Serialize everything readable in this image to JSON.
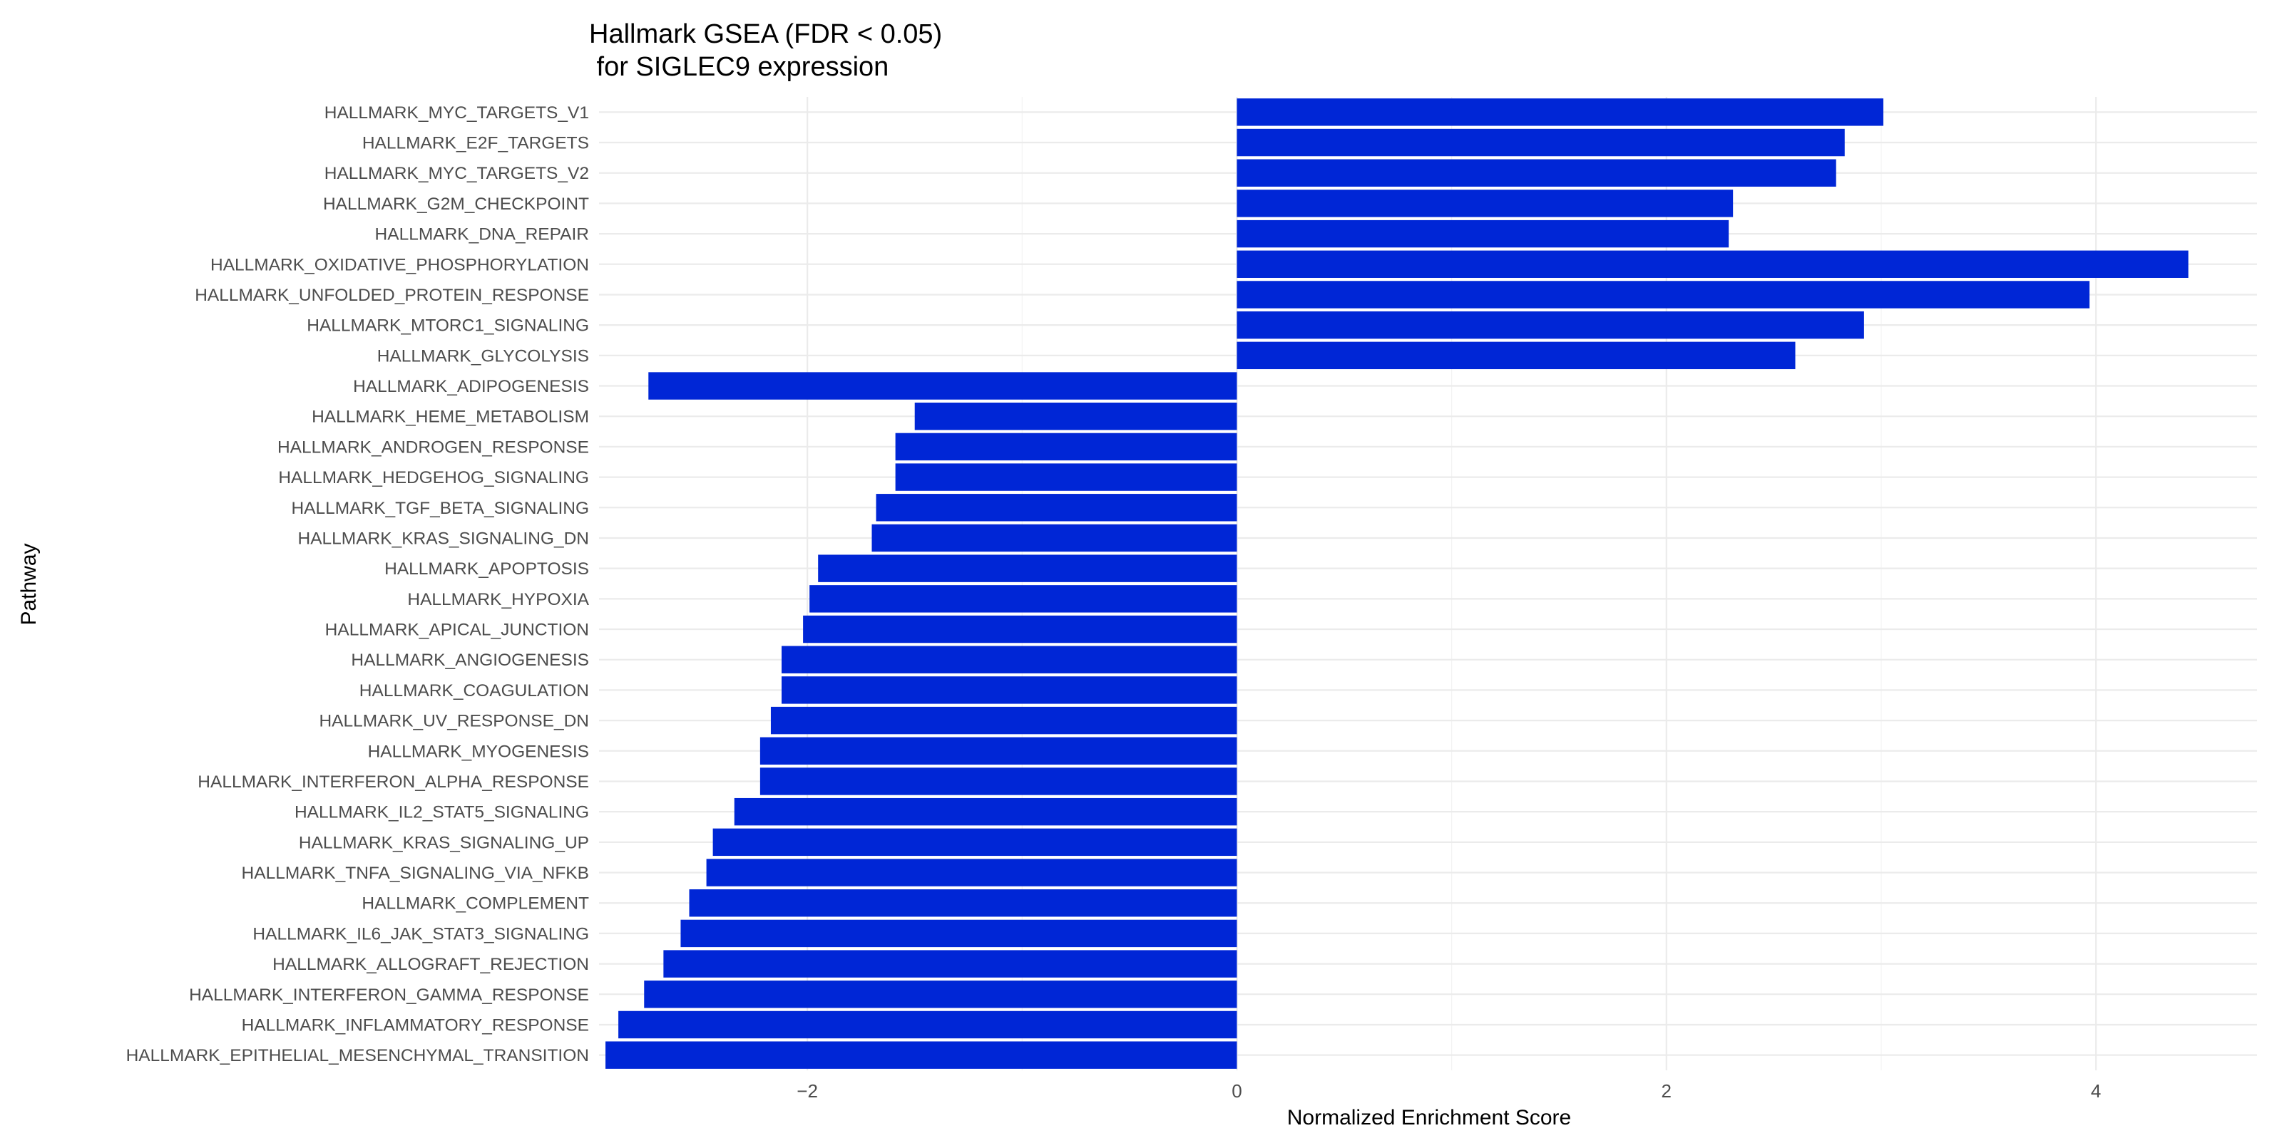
{
  "chart_data": {
    "type": "bar",
    "orientation": "horizontal",
    "title": "Hallmark GSEA (FDR < 0.05)",
    "subtitle": " for SIGLEC9 expression",
    "xlabel": "Normalized Enrichment Score",
    "ylabel": "Pathway",
    "xlim": [
      -2.97,
      4.75
    ],
    "xticks": [
      -2,
      0,
      2,
      4
    ],
    "grid": true,
    "legend": "none",
    "bar_color": "#0026d6",
    "categories": [
      "HALLMARK_MYC_TARGETS_V1",
      "HALLMARK_E2F_TARGETS",
      "HALLMARK_MYC_TARGETS_V2",
      "HALLMARK_G2M_CHECKPOINT",
      "HALLMARK_DNA_REPAIR",
      "HALLMARK_OXIDATIVE_PHOSPHORYLATION",
      "HALLMARK_UNFOLDED_PROTEIN_RESPONSE",
      "HALLMARK_MTORC1_SIGNALING",
      "HALLMARK_GLYCOLYSIS",
      "HALLMARK_ADIPOGENESIS",
      "HALLMARK_HEME_METABOLISM",
      "HALLMARK_ANDROGEN_RESPONSE",
      "HALLMARK_HEDGEHOG_SIGNALING",
      "HALLMARK_TGF_BETA_SIGNALING",
      "HALLMARK_KRAS_SIGNALING_DN",
      "HALLMARK_APOPTOSIS",
      "HALLMARK_HYPOXIA",
      "HALLMARK_APICAL_JUNCTION",
      "HALLMARK_ANGIOGENESIS",
      "HALLMARK_COAGULATION",
      "HALLMARK_UV_RESPONSE_DN",
      "HALLMARK_MYOGENESIS",
      "HALLMARK_INTERFERON_ALPHA_RESPONSE",
      "HALLMARK_IL2_STAT5_SIGNALING",
      "HALLMARK_KRAS_SIGNALING_UP",
      "HALLMARK_TNFA_SIGNALING_VIA_NFKB",
      "HALLMARK_COMPLEMENT",
      "HALLMARK_IL6_JAK_STAT3_SIGNALING",
      "HALLMARK_ALLOGRAFT_REJECTION",
      "HALLMARK_INTERFERON_GAMMA_RESPONSE",
      "HALLMARK_INFLAMMATORY_RESPONSE",
      "HALLMARK_EPITHELIAL_MESENCHYMAL_TRANSITION"
    ],
    "values": [
      3.01,
      2.83,
      2.79,
      2.31,
      2.29,
      4.43,
      3.97,
      2.92,
      2.6,
      -2.74,
      -1.5,
      -1.59,
      -1.59,
      -1.68,
      -1.7,
      -1.95,
      -1.99,
      -2.02,
      -2.12,
      -2.12,
      -2.17,
      -2.22,
      -2.22,
      -2.34,
      -2.44,
      -2.47,
      -2.55,
      -2.59,
      -2.67,
      -2.76,
      -2.88,
      -2.94
    ]
  }
}
